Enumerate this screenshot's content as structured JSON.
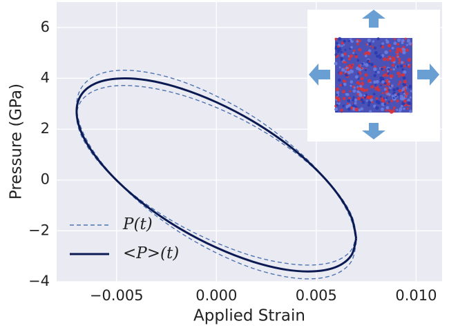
{
  "chart_data": {
    "type": "line",
    "x_label": "Applied Strain",
    "y_label": "Pressure (GPa)",
    "xlim": [
      -0.008,
      0.0113
    ],
    "ylim": [
      -4,
      7
    ],
    "xticks": [
      {
        "value": -0.005,
        "label": "−0.005"
      },
      {
        "value": 0,
        "label": "0.000"
      },
      {
        "value": 0.005,
        "label": "0.005"
      },
      {
        "value": 0.01,
        "label": "0.010"
      }
    ],
    "yticks": [
      {
        "value": -4,
        "label": "−4"
      },
      {
        "value": -2,
        "label": "−2"
      },
      0,
      2,
      4,
      6
    ],
    "grid": true,
    "legend": "lower left",
    "series": [
      {
        "name": "P(t)",
        "color": "#4c72b0",
        "dashed": true,
        "x": [
          0.007,
          0.00676,
          0.00606,
          0.00495,
          0.0035,
          0.00181,
          0,
          -0.00181,
          -0.0035,
          -0.00495,
          -0.00606,
          -0.00676,
          -0.007,
          -0.00676,
          -0.00606,
          -0.00495,
          -0.0035,
          -0.00181,
          0,
          0.00181,
          0.0035,
          0.00495,
          0.00606,
          0.00676,
          0.007,
          null,
          0.007,
          0.00676,
          0.00606,
          0.00495,
          0.0035,
          0.00181,
          0,
          -0.00181,
          -0.0035,
          -0.00495,
          -0.00606,
          -0.00676,
          -0.007,
          -0.00676,
          -0.00606,
          -0.00495,
          -0.0035,
          -0.00181,
          0,
          0.00181,
          0.0035,
          0.00495,
          0.00606,
          0.00676,
          0.007
        ],
        "values": [
          -2.48,
          -1.59,
          -0.58,
          0.49,
          1.54,
          2.51,
          3.3,
          3.9,
          4.24,
          4.31,
          4.1,
          3.63,
          2.92,
          2.02,
          1.02,
          -0.05,
          -1.11,
          -2.07,
          -2.87,
          -3.47,
          -3.81,
          -3.88,
          -3.67,
          -3.2,
          -2.48,
          null,
          -2.14,
          -1.37,
          -0.5,
          0.42,
          1.33,
          2.16,
          2.85,
          3.36,
          3.65,
          3.71,
          3.53,
          3.12,
          2.51,
          1.74,
          0.87,
          -0.05,
          -0.96,
          -1.79,
          -2.47,
          -2.99,
          -3.28,
          -3.34,
          -3.16,
          -2.75,
          -2.14
        ]
      },
      {
        "name": "<P>(t)",
        "color": "#0b1a52",
        "dashed": false,
        "x": [
          0.007,
          0.00676,
          0.00606,
          0.00495,
          0.0035,
          0.00181,
          0,
          -0.00181,
          -0.0035,
          -0.00495,
          -0.00606,
          -0.00676,
          -0.007,
          -0.00676,
          -0.00606,
          -0.00495,
          -0.0035,
          -0.00181,
          0,
          0.00181,
          0.0035,
          0.00495,
          0.00606,
          0.00676,
          0.007
        ],
        "values": [
          -2.3,
          -1.47,
          -0.54,
          0.45,
          1.43,
          2.32,
          3.06,
          3.61,
          3.93,
          3.99,
          3.8,
          3.36,
          2.7,
          1.87,
          0.94,
          -0.05,
          -1.03,
          -1.92,
          -2.66,
          -3.21,
          -3.53,
          -3.59,
          -3.4,
          -2.96,
          -2.3
        ]
      }
    ]
  }
}
